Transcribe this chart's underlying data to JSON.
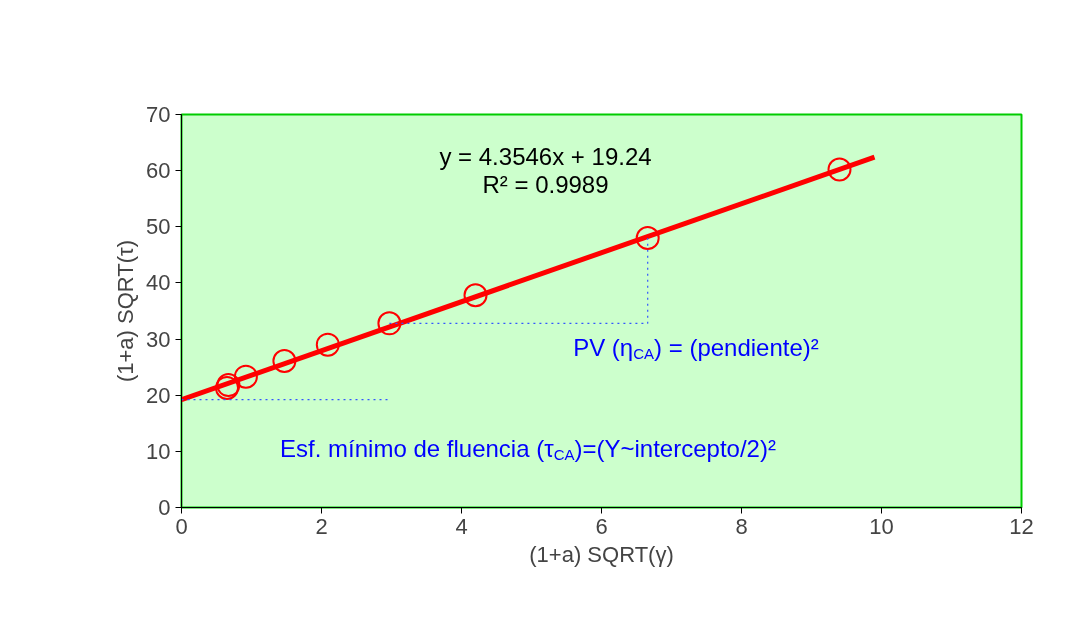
{
  "chart_data": {
    "type": "scatter",
    "xlabel": "(1+a) SQRT(γ)",
    "ylabel": "(1+a) SQRT(τ)",
    "xlim": [
      0,
      12
    ],
    "ylim": [
      0,
      70
    ],
    "xticks": [
      0,
      2,
      4,
      6,
      8,
      10,
      12
    ],
    "yticks": [
      0,
      10,
      20,
      30,
      40,
      50,
      60,
      70
    ],
    "grid": false,
    "marker": "circle",
    "series": [
      {
        "color": "#ff0000",
        "x": [
          0.65,
          0.67,
          0.92,
          1.47,
          2.09,
          2.97,
          4.2,
          6.66,
          9.4
        ],
        "values": [
          21.3,
          21.8,
          23.3,
          26.1,
          29.0,
          32.8,
          37.8,
          48.0,
          60.2
        ]
      },
      {
        "type": "line",
        "color": "#ff0000",
        "line_style": "solid",
        "marker": "none",
        "x": [
          0,
          9.9
        ],
        "values": [
          19.2,
          62.4
        ]
      },
      {
        "type": "line",
        "color": "#3355ff",
        "line_style": "dotted",
        "marker": "none",
        "x": [
          0,
          2.97
        ],
        "values": [
          19.2,
          19.2
        ]
      },
      {
        "type": "line",
        "color": "#3355ff",
        "line_style": "dotted",
        "marker": "none",
        "x": [
          2.97,
          6.66,
          6.66
        ],
        "values": [
          32.8,
          32.8,
          48.0
        ]
      }
    ],
    "annotations": [
      "y = 4.3546x + 19.24",
      "R² = 0.9989",
      "PV (η$_{CA}$) = (pendiente)²",
      "Esf. mínimo de fluencia (τ$_{CA}$)=(Y~intercepto/2)²"
    ]
  }
}
